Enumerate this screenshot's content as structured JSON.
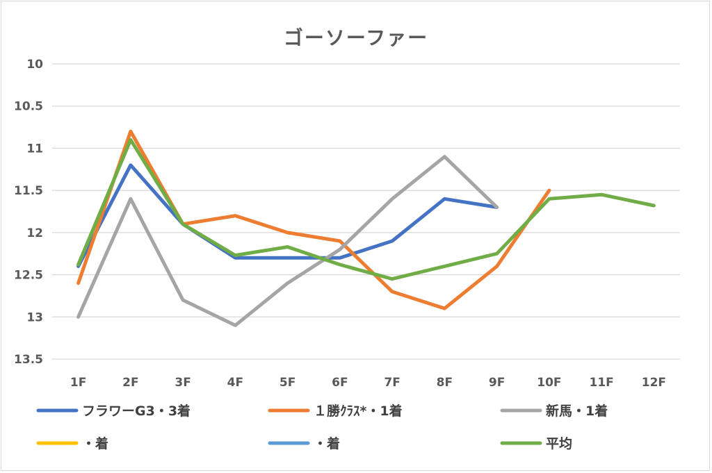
{
  "chart_data": {
    "type": "line",
    "title": "ゴーソーファー",
    "xlabel": "",
    "ylabel": "",
    "categories": [
      "1F",
      "2F",
      "3F",
      "4F",
      "5F",
      "6F",
      "7F",
      "8F",
      "9F",
      "10F",
      "11F",
      "12F"
    ],
    "y_reversed": true,
    "ylim": [
      10,
      13.5
    ],
    "yticks": [
      "10",
      "10.5",
      "11",
      "11.5",
      "12",
      "12.5",
      "13",
      "13.5"
    ],
    "grid": true,
    "legend_position": "bottom",
    "series": [
      {
        "name": "フラワーG3・3着",
        "color": "#4472c4",
        "values": [
          12.4,
          11.2,
          11.9,
          12.3,
          12.3,
          12.3,
          12.1,
          11.6,
          11.7,
          null,
          null,
          null
        ]
      },
      {
        "name": "１勝ｸﾗｽ*・1着",
        "color": "#ed7d31",
        "values": [
          12.6,
          10.8,
          11.9,
          11.8,
          12.0,
          12.1,
          12.7,
          12.9,
          12.4,
          11.5,
          null,
          null
        ]
      },
      {
        "name": "新馬・1着",
        "color": "#a5a5a5",
        "values": [
          13.0,
          11.6,
          12.8,
          13.1,
          12.6,
          12.2,
          11.6,
          11.1,
          11.7,
          null,
          null,
          null
        ]
      },
      {
        "name": "・着",
        "color": "#ffc000",
        "values": [
          null,
          null,
          null,
          null,
          null,
          null,
          null,
          null,
          null,
          null,
          null,
          null
        ]
      },
      {
        "name": "・着",
        "color": "#5b9bd5",
        "values": [
          null,
          null,
          null,
          null,
          null,
          null,
          null,
          null,
          null,
          null,
          null,
          null
        ]
      },
      {
        "name": "平均",
        "color": "#70ad47",
        "values": [
          12.38,
          10.9,
          11.9,
          12.27,
          12.17,
          12.38,
          12.55,
          12.4,
          12.25,
          11.6,
          11.55,
          11.68
        ]
      }
    ]
  }
}
